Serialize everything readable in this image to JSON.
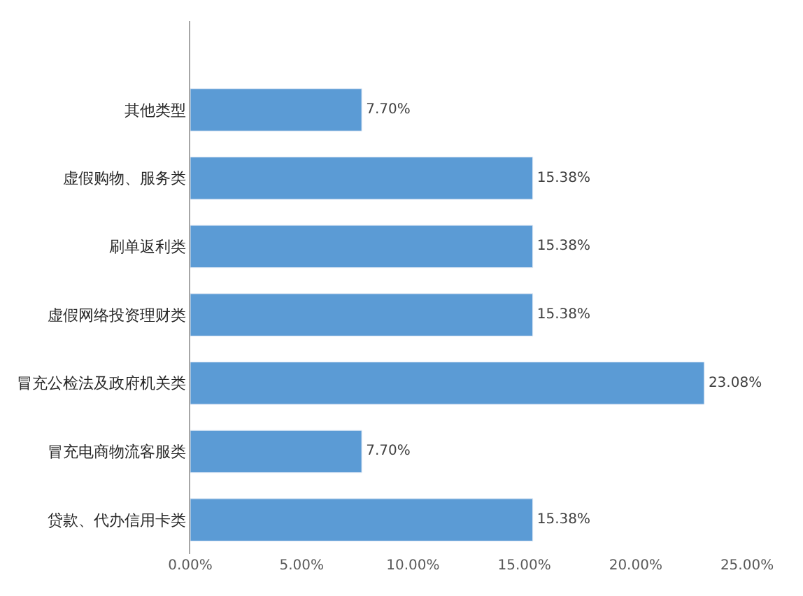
{
  "chart_data": {
    "type": "bar",
    "orientation": "horizontal",
    "categories": [
      "其他类型",
      "虚假购物、服务类",
      "刷单返利类",
      "虚假网络投资理财类",
      "冒充公检法及政府机关类",
      "冒充电商物流客服类",
      "贷款、代办信用卡类"
    ],
    "values": [
      7.7,
      15.38,
      15.38,
      15.38,
      23.08,
      7.7,
      15.38
    ],
    "value_labels": [
      "7.70%",
      "15.38%",
      "15.38%",
      "15.38%",
      "23.08%",
      "7.70%",
      "15.38%"
    ],
    "color": "#5b9bd5",
    "xlim": [
      0,
      25
    ],
    "xticks": [
      {
        "value": 0,
        "label": "0.00%"
      },
      {
        "value": 5,
        "label": "5.00%"
      },
      {
        "value": 10,
        "label": "10.00%"
      },
      {
        "value": 15,
        "label": "15.00%"
      },
      {
        "value": 20,
        "label": "20.00%"
      },
      {
        "value": 25,
        "label": "25.00%"
      }
    ],
    "legend": false
  }
}
